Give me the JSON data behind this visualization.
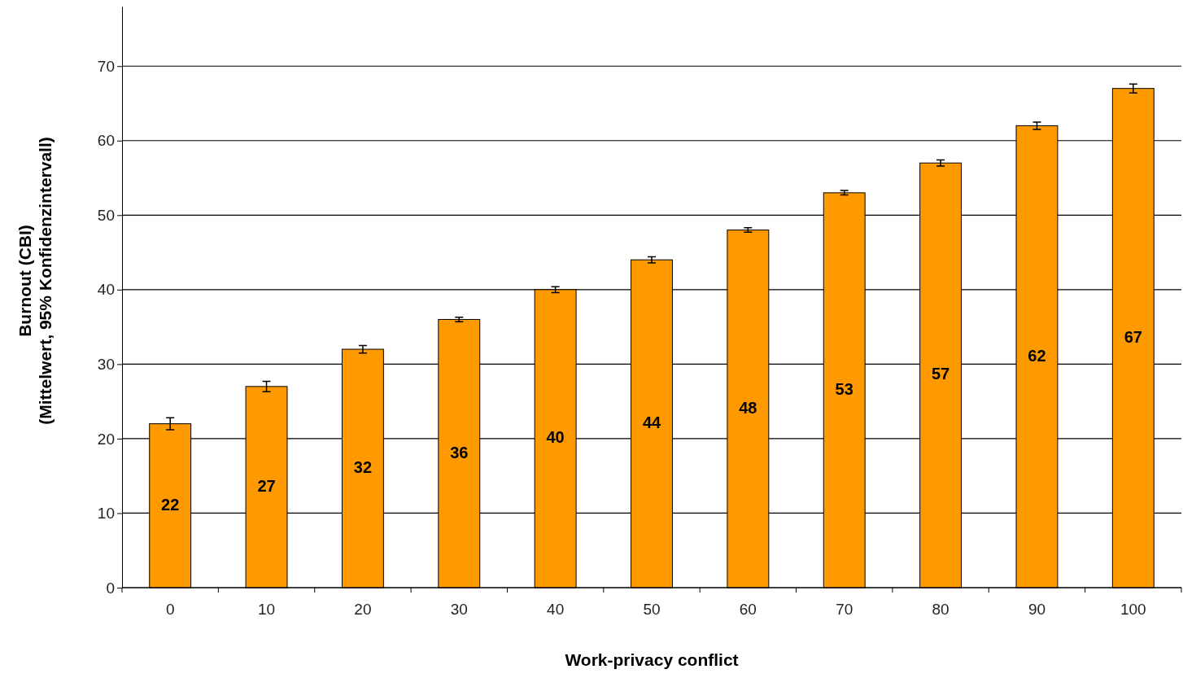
{
  "chart_data": {
    "type": "bar",
    "xlabel": "Work-privacy conflict",
    "ylabel": "Burnout (CBI)\n(Mittelwert, 95% Konfidenzintervall)",
    "categories": [
      "0",
      "10",
      "20",
      "30",
      "40",
      "50",
      "60",
      "70",
      "80",
      "90",
      "100"
    ],
    "values": [
      22,
      27,
      32,
      36,
      40,
      44,
      48,
      53,
      57,
      62,
      67
    ],
    "errors": [
      0.8,
      0.7,
      0.5,
      0.3,
      0.4,
      0.4,
      0.3,
      0.3,
      0.4,
      0.5,
      0.6
    ],
    "color": "#ff9900",
    "data_labels": true,
    "ylim": [
      0,
      78
    ],
    "yticks": [
      0,
      10,
      20,
      30,
      40,
      50,
      60,
      70
    ],
    "grid": "y"
  }
}
